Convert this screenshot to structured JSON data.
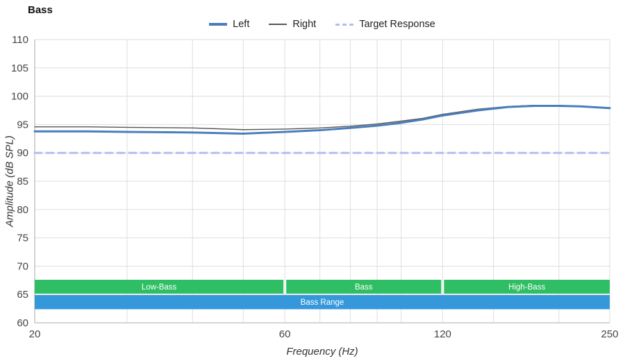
{
  "title": "Bass",
  "legend": [
    {
      "label": "Left",
      "color": "#4a7ebb",
      "style": "solid-thick"
    },
    {
      "label": "Right",
      "color": "#555555",
      "style": "solid-thin"
    },
    {
      "label": "Target Response",
      "color": "#b3bff2",
      "style": "dashed"
    }
  ],
  "chart_data": {
    "type": "line",
    "title": "Bass",
    "xlabel": "Frequency (Hz)",
    "ylabel": "Amplitude (dB SPL)",
    "x_scale": "log",
    "xlim": [
      20,
      250
    ],
    "ylim": [
      60,
      110
    ],
    "x_ticks": [
      20,
      60,
      120,
      250
    ],
    "y_ticks": [
      60,
      65,
      70,
      75,
      80,
      85,
      90,
      95,
      100,
      105,
      110
    ],
    "x_gridlines": [
      20,
      30,
      40,
      50,
      60,
      70,
      80,
      90,
      100,
      120,
      150,
      200,
      250
    ],
    "grid_color": "#dddddd",
    "axis_color": "#aaaaaa",
    "tick_label_color": "#444444",
    "x": [
      20,
      25,
      30,
      40,
      50,
      60,
      70,
      80,
      90,
      100,
      110,
      120,
      140,
      160,
      180,
      200,
      220,
      250
    ],
    "series": [
      {
        "name": "Left",
        "color": "#4a7ebb",
        "width": 3,
        "values": [
          93.8,
          93.8,
          93.7,
          93.6,
          93.4,
          93.7,
          94.0,
          94.4,
          94.8,
          95.3,
          95.9,
          96.6,
          97.5,
          98.1,
          98.3,
          98.3,
          98.2,
          97.9
        ]
      },
      {
        "name": "Right",
        "color": "#555555",
        "width": 1.4,
        "values": [
          94.6,
          94.6,
          94.5,
          94.4,
          94.1,
          94.2,
          94.4,
          94.7,
          95.1,
          95.6,
          96.1,
          96.8,
          97.7,
          98.2,
          98.4,
          98.4,
          98.2,
          98.0
        ]
      },
      {
        "name": "Target Response",
        "color": "#b3bff2",
        "width": 3,
        "dash": "10 7",
        "constant": 90
      }
    ],
    "bands": [
      {
        "label": "Low-Bass",
        "f1": 20,
        "f2": 60,
        "db1": 65.15,
        "db2": 67.6,
        "color": "#2fbe63",
        "text_color": "#ffffff"
      },
      {
        "label": "Bass",
        "f1": 60,
        "f2": 120,
        "db1": 65.15,
        "db2": 67.6,
        "color": "#2fbe63",
        "text_color": "#ffffff"
      },
      {
        "label": "High-Bass",
        "f1": 120,
        "f2": 250,
        "db1": 65.15,
        "db2": 67.6,
        "color": "#2fbe63",
        "text_color": "#ffffff"
      },
      {
        "label": "Bass Range",
        "f1": 20,
        "f2": 250,
        "db1": 62.4,
        "db2": 64.9,
        "color": "#3598db",
        "text_color": "#ffffff"
      }
    ]
  }
}
